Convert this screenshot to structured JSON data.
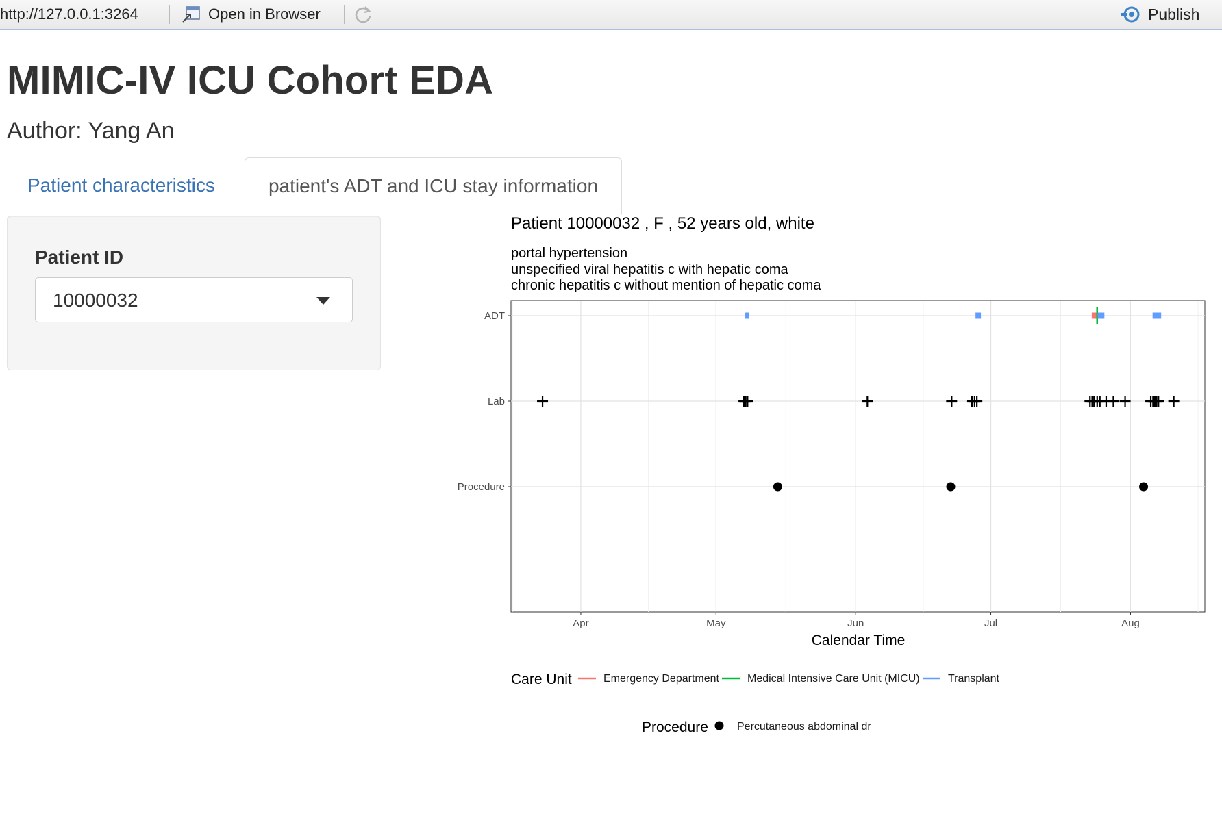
{
  "toolbar": {
    "url": "http://127.0.0.1:3264",
    "open_in_browser_label": "Open in Browser",
    "publish_label": "Publish"
  },
  "app": {
    "title": "MIMIC-IV ICU Cohort EDA",
    "author": "Author: Yang An"
  },
  "tabs": [
    {
      "label": "Patient characteristics"
    },
    {
      "label": "patient's ADT and ICU stay information"
    }
  ],
  "sidebar": {
    "patient_id_label": "Patient ID",
    "patient_id_value": "10000032"
  },
  "colors": {
    "emergency_department": "#f8766d",
    "micu": "#00ba38",
    "transplant": "#619cff",
    "tab_link": "#3a73b3"
  },
  "chart_data": {
    "type": "scatter",
    "title": "Patient 10000032 , F , 52 years old, white",
    "subtitle_lines": [
      "portal hypertension",
      "unspecified viral hepatitis c with hepatic coma",
      "chronic hepatitis c without mention of hepatic coma"
    ],
    "xlabel": "Calendar Time",
    "ylabel": "",
    "x_tick_labels": [
      "Apr",
      "May",
      "Jun",
      "Jul",
      "Aug"
    ],
    "x_tick_values": [
      0,
      30,
      61,
      91,
      122
    ],
    "x_range": [
      -15.5,
      138.5
    ],
    "y_categories": [
      "ADT",
      "Lab",
      "Procedure"
    ],
    "grid": true,
    "legend_position": "bottom",
    "adt_segments": [
      {
        "care_unit": "Transplant",
        "start": 36.5,
        "end": 37.4
      },
      {
        "care_unit": "Transplant",
        "start": 87.6,
        "end": 88.8
      },
      {
        "care_unit": "Emergency Department",
        "start": 113.4,
        "end": 114.4
      },
      {
        "care_unit": "Medical Intensive Care Unit (MICU)",
        "start": 114.4,
        "end": 114.7
      },
      {
        "care_unit": "Transplant",
        "start": 114.7,
        "end": 116.2
      },
      {
        "care_unit": "Transplant",
        "start": 126.9,
        "end": 128.8
      }
    ],
    "lab_times": [
      -8.5,
      36.2,
      36.6,
      37.0,
      63.6,
      82.3,
      86.8,
      87.4,
      87.9,
      113.0,
      113.5,
      113.9,
      114.6,
      115.2,
      116.6,
      118.2,
      120.8,
      126.5,
      127.0,
      127.4,
      127.8,
      128.2,
      131.6
    ],
    "procedures": [
      {
        "name": "Percutaneous abdominal dr",
        "time": 43.7
      },
      {
        "name": "Percutaneous abdominal dr",
        "time": 82.1
      },
      {
        "name": "Percutaneous abdominal dr",
        "time": 124.9
      }
    ],
    "legend": {
      "care_unit_title": "Care Unit",
      "care_units": [
        "Emergency Department",
        "Medical Intensive Care Unit (MICU)",
        "Transplant"
      ],
      "procedure_title": "Procedure",
      "procedure_items": [
        "Percutaneous abdominal dr"
      ]
    }
  }
}
